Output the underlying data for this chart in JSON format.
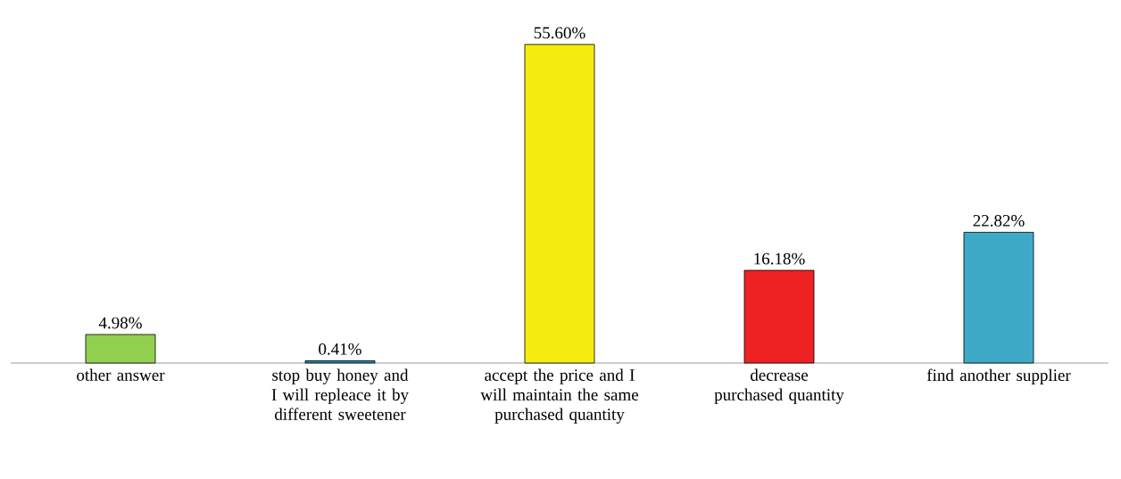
{
  "chart_data": {
    "type": "bar",
    "categories": [
      "other answer",
      "stop buy honey and I will repleace it by different sweetener",
      "accept the price and I will maintain the same purchased quantity",
      "decrease purchased quantity",
      "find another supplier"
    ],
    "values": [
      4.98,
      0.41,
      55.6,
      16.18,
      22.82
    ],
    "value_labels": [
      "4.98%",
      "0.41%",
      "55.60%",
      "16.18%",
      "22.82%"
    ],
    "colors": [
      "#92d050",
      "#1c86c0",
      "#f5ec10",
      "#ee2222",
      "#3faac8"
    ]
  }
}
